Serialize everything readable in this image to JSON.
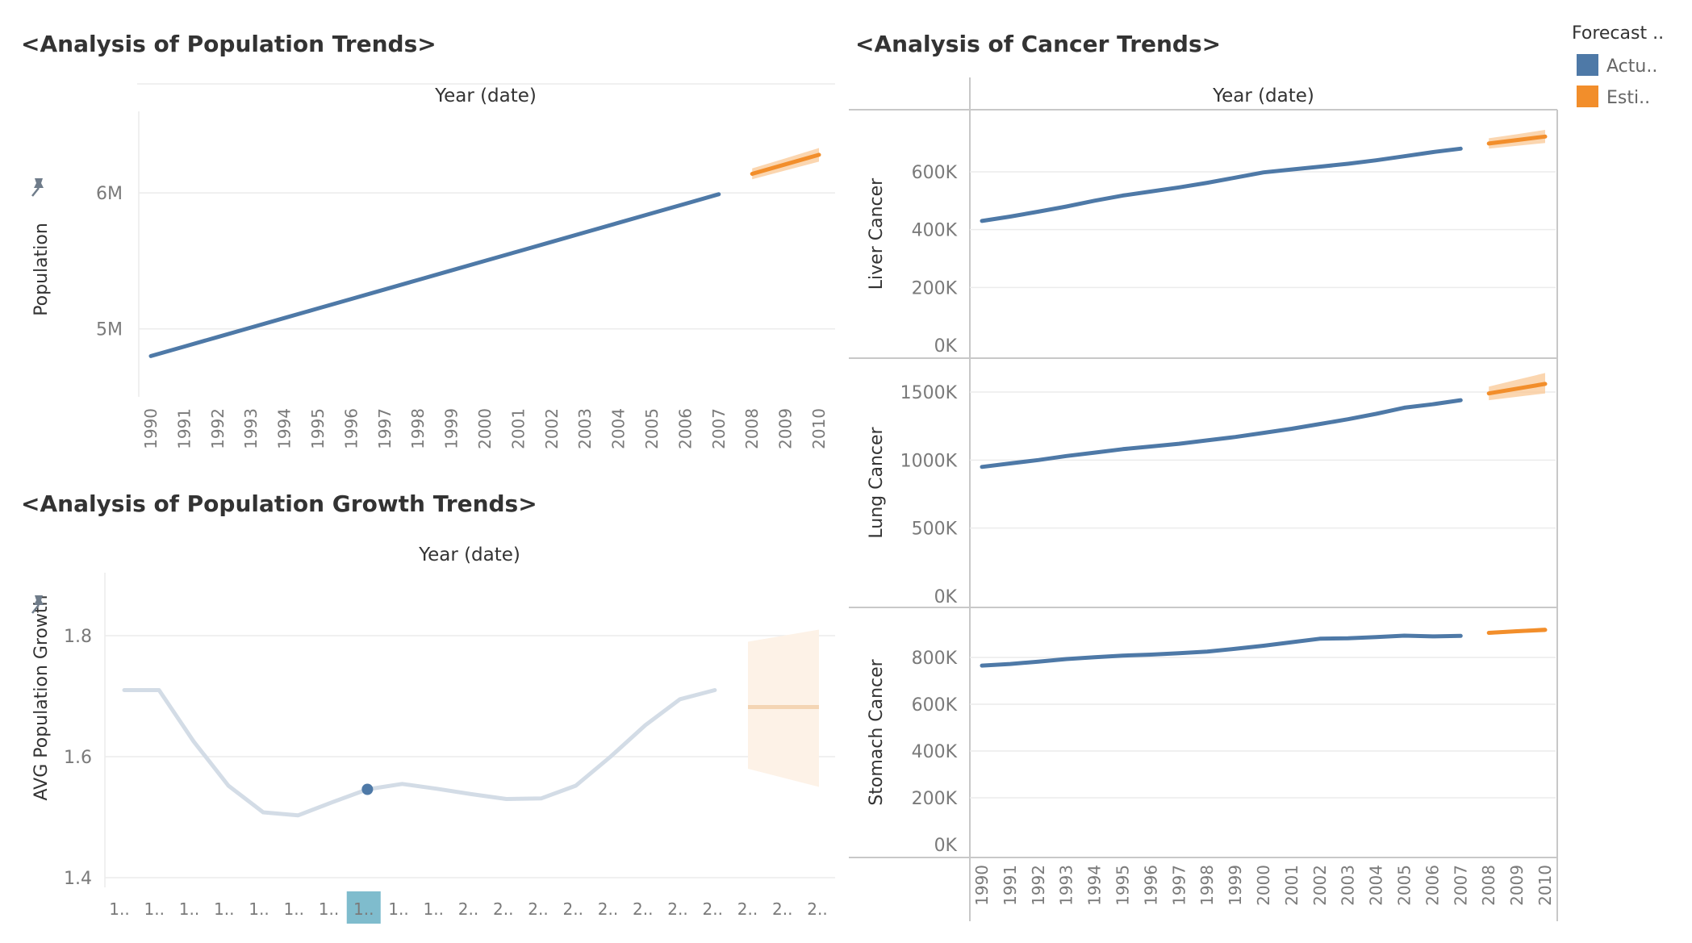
{
  "chart_data": [
    {
      "type": "line",
      "title": "<Analysis of Population Trends>",
      "header": "Year (date)",
      "ylabel": "Population",
      "x": [
        1990,
        1991,
        1992,
        1993,
        1994,
        1995,
        1996,
        1997,
        1998,
        1999,
        2000,
        2001,
        2002,
        2003,
        2004,
        2005,
        2006,
        2007,
        2008,
        2009,
        2010
      ],
      "x_tick_labels": [
        "1990",
        "1991",
        "1992",
        "1993",
        "1994",
        "1995",
        "1996",
        "1997",
        "1998",
        "1999",
        "2000",
        "2001",
        "2002",
        "2003",
        "2004",
        "2005",
        "2006",
        "2007",
        "2008",
        "2009",
        "2010"
      ],
      "ylim": [
        4500000,
        6600000
      ],
      "y_ticks": [
        5000000,
        6000000
      ],
      "y_tick_labels": [
        "5M",
        "6M"
      ],
      "series": [
        {
          "name": "Actual",
          "x": [
            1990,
            1991,
            1992,
            1993,
            1994,
            1995,
            1996,
            1997,
            1998,
            1999,
            2000,
            2001,
            2002,
            2003,
            2004,
            2005,
            2006,
            2007
          ],
          "values": [
            4800000,
            4870000,
            4940000,
            5010000,
            5080000,
            5150000,
            5220000,
            5290000,
            5360000,
            5430000,
            5500000,
            5570000,
            5640000,
            5710000,
            5780000,
            5850000,
            5920000,
            5990000
          ]
        },
        {
          "name": "Estimate",
          "x": [
            2008,
            2009,
            2010
          ],
          "values": [
            6140000,
            6210000,
            6280000
          ],
          "upper": [
            6180000,
            6255000,
            6330000
          ],
          "lower": [
            6100000,
            6165000,
            6230000
          ]
        }
      ]
    },
    {
      "type": "line",
      "title": "<Analysis of Population Growth Trends>",
      "header": "Year (date)",
      "ylabel": "AVG Population Growth",
      "x": [
        1990,
        1991,
        1992,
        1993,
        1994,
        1995,
        1996,
        1997,
        1998,
        1999,
        2000,
        2001,
        2002,
        2003,
        2004,
        2005,
        2006,
        2007,
        2008,
        2009,
        2010
      ],
      "x_tick_labels": [
        "1..",
        "1..",
        "1..",
        "1..",
        "1..",
        "1..",
        "1..",
        "1..",
        "1..",
        "1..",
        "2..",
        "2..",
        "2..",
        "2..",
        "2..",
        "2..",
        "2..",
        "2..",
        "2..",
        "2..",
        "2.."
      ],
      "highlighted_x": 1997,
      "ylim": [
        1.38,
        1.9
      ],
      "y_ticks": [
        1.4,
        1.6,
        1.8
      ],
      "y_tick_labels": [
        "1.4",
        "1.6",
        "1.8"
      ],
      "series": [
        {
          "name": "Actual",
          "x": [
            1990,
            1991,
            1992,
            1993,
            1994,
            1995,
            1996,
            1997,
            1998,
            1999,
            2000,
            2001,
            2002,
            2003,
            2004,
            2005,
            2006,
            2007
          ],
          "values": [
            1.71,
            1.71,
            1.625,
            1.552,
            1.508,
            1.503,
            1.525,
            1.546,
            1.555,
            1.547,
            1.538,
            1.53,
            1.531,
            1.552,
            1.6,
            1.652,
            1.695,
            1.71
          ],
          "highlighted_point": {
            "x": 1997,
            "value": 1.546
          }
        },
        {
          "name": "Estimate",
          "x": [
            2008,
            2009,
            2010
          ],
          "values": [
            1.682,
            1.682,
            1.682
          ],
          "upper": [
            1.79,
            1.8,
            1.81
          ],
          "lower": [
            1.58,
            1.565,
            1.55
          ]
        }
      ]
    },
    {
      "type": "line",
      "title": "<Analysis of Cancer Trends>",
      "header": "Year (date)",
      "x": [
        1990,
        1991,
        1992,
        1993,
        1994,
        1995,
        1996,
        1997,
        1998,
        1999,
        2000,
        2001,
        2002,
        2003,
        2004,
        2005,
        2006,
        2007,
        2008,
        2009,
        2010
      ],
      "x_tick_labels": [
        "1990",
        "1991",
        "1992",
        "1993",
        "1994",
        "1995",
        "1996",
        "1997",
        "1998",
        "1999",
        "2000",
        "2001",
        "2002",
        "2003",
        "2004",
        "2005",
        "2006",
        "2007",
        "2008",
        "2009",
        "2010"
      ],
      "panels": [
        {
          "ylabel": "Liver Cancer",
          "ylim": [
            0,
            760000
          ],
          "y_ticks": [
            0,
            200000,
            400000,
            600000
          ],
          "y_tick_labels": [
            "0K",
            "200K",
            "400K",
            "600K"
          ],
          "series": [
            {
              "name": "Actual",
              "x": [
                1990,
                1991,
                1992,
                1993,
                1994,
                1995,
                1996,
                1997,
                1998,
                1999,
                2000,
                2001,
                2002,
                2003,
                2004,
                2005,
                2006,
                2007
              ],
              "values": [
                430000,
                445000,
                462000,
                480000,
                500000,
                518000,
                532000,
                546000,
                562000,
                580000,
                598000,
                608000,
                618000,
                628000,
                640000,
                654000,
                668000,
                680000
              ]
            },
            {
              "name": "Estimate",
              "x": [
                2008,
                2009,
                2010
              ],
              "values": [
                698000,
                710000,
                722000
              ],
              "upper": [
                716000,
                730000,
                745000
              ],
              "lower": [
                680000,
                690000,
                700000
              ]
            }
          ]
        },
        {
          "ylabel": "Lung Cancer",
          "ylim": [
            0,
            1680000
          ],
          "y_ticks": [
            0,
            500000,
            1000000,
            1500000
          ],
          "y_tick_labels": [
            "0K",
            "500K",
            "1000K",
            "1500K"
          ],
          "series": [
            {
              "name": "Actual",
              "x": [
                1990,
                1991,
                1992,
                1993,
                1994,
                1995,
                1996,
                1997,
                1998,
                1999,
                2000,
                2001,
                2002,
                2003,
                2004,
                2005,
                2006,
                2007
              ],
              "values": [
                950000,
                975000,
                1000000,
                1030000,
                1055000,
                1080000,
                1100000,
                1120000,
                1145000,
                1170000,
                1200000,
                1230000,
                1265000,
                1300000,
                1340000,
                1385000,
                1410000,
                1440000
              ]
            },
            {
              "name": "Estimate",
              "x": [
                2008,
                2009,
                2010
              ],
              "values": [
                1490000,
                1525000,
                1560000
              ],
              "upper": [
                1540000,
                1590000,
                1640000
              ],
              "lower": [
                1440000,
                1465000,
                1490000
              ]
            }
          ]
        },
        {
          "ylabel": "Stomach Cancer",
          "ylim": [
            0,
            970000
          ],
          "y_ticks": [
            0,
            200000,
            400000,
            600000,
            800000
          ],
          "y_tick_labels": [
            "0K",
            "200K",
            "400K",
            "600K",
            "800K"
          ],
          "series": [
            {
              "name": "Actual",
              "x": [
                1990,
                1991,
                1992,
                1993,
                1994,
                1995,
                1996,
                1997,
                1998,
                1999,
                2000,
                2001,
                2002,
                2003,
                2004,
                2005,
                2006,
                2007
              ],
              "values": [
                765000,
                772000,
                782000,
                793000,
                801000,
                808000,
                812000,
                818000,
                825000,
                837000,
                850000,
                865000,
                880000,
                882000,
                887000,
                893000,
                890000,
                892000
              ]
            },
            {
              "name": "Estimate",
              "x": [
                2008,
                2009,
                2010
              ],
              "values": [
                905000,
                912000,
                918000
              ],
              "upper": [
                913000,
                920000,
                928000
              ],
              "lower": [
                897000,
                904000,
                908000
              ]
            }
          ]
        }
      ]
    }
  ],
  "legend": {
    "title": "Forecast ..",
    "items": [
      {
        "label": "Actu..",
        "color": "#4e79a7"
      },
      {
        "label": "Esti..",
        "color": "#f28e2b"
      }
    ]
  },
  "colors": {
    "actual": "#4e79a7",
    "estimate": "#f28e2b",
    "estimate_band": "#f9c896",
    "growth_line": "#d3dce6",
    "growth_band": "#fdf2e7",
    "growth_estimate": "#f4d5b4",
    "highlight": "#7fbccd"
  },
  "icons": {
    "pin": "pin-icon"
  }
}
